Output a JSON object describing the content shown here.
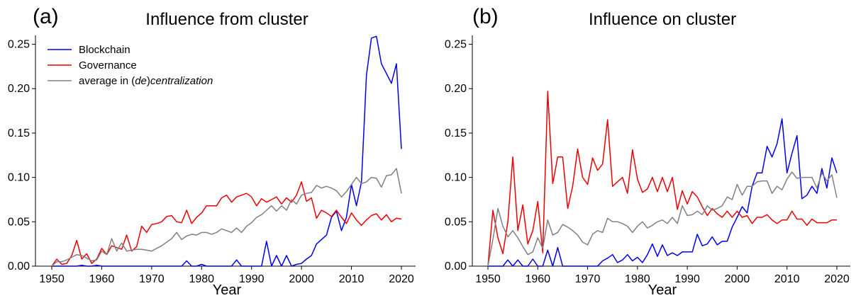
{
  "chart_data": [
    {
      "type": "line",
      "panel_label": "(a)",
      "title": "Influence from cluster",
      "xlabel": "Year",
      "ylabel": "",
      "xlim": [
        1950,
        2020
      ],
      "ylim": [
        0,
        0.26
      ],
      "xticks": [
        1950,
        1960,
        1970,
        1980,
        1990,
        2000,
        2010,
        2020
      ],
      "yticks": [
        "0.00",
        "0.05",
        "0.10",
        "0.15",
        "0.20",
        "0.25"
      ],
      "legend": "top-left",
      "grid": false,
      "x": [
        1950,
        1951,
        1952,
        1953,
        1954,
        1955,
        1956,
        1957,
        1958,
        1959,
        1960,
        1961,
        1962,
        1963,
        1964,
        1965,
        1966,
        1967,
        1968,
        1969,
        1970,
        1971,
        1972,
        1973,
        1974,
        1975,
        1976,
        1977,
        1978,
        1979,
        1980,
        1981,
        1982,
        1983,
        1984,
        1985,
        1986,
        1987,
        1988,
        1989,
        1990,
        1991,
        1992,
        1993,
        1994,
        1995,
        1996,
        1997,
        1998,
        1999,
        2000,
        2001,
        2002,
        2003,
        2004,
        2005,
        2006,
        2007,
        2008,
        2009,
        2010,
        2011,
        2012,
        2013,
        2014,
        2015,
        2016,
        2017,
        2018,
        2019,
        2020
      ],
      "series": [
        {
          "name": "Blockchain",
          "color": "#0000ee",
          "values": [
            0,
            0,
            0,
            0,
            0,
            0,
            0.001,
            0,
            0,
            0.001,
            0,
            0,
            0,
            0,
            0,
            0,
            0,
            0,
            0,
            0,
            0,
            0,
            0,
            0,
            0,
            0,
            0,
            0.006,
            0,
            0,
            0.002,
            0,
            0,
            0,
            0,
            0,
            0,
            0.007,
            0,
            0,
            0,
            0,
            0,
            0.028,
            0,
            0.012,
            0,
            0.012,
            0,
            0.002,
            0.003,
            0.008,
            0.012,
            0.025,
            0.03,
            0.035,
            0.055,
            0.062,
            0.04,
            0.055,
            0.092,
            0.068,
            0.095,
            0.215,
            0.257,
            0.259,
            0.228,
            0.217,
            0.206,
            0.228,
            0.132
          ]
        },
        {
          "name": "Governance",
          "color": "#ee0000",
          "values": [
            0,
            0.008,
            0.002,
            0.003,
            0.012,
            0.029,
            0.008,
            0.014,
            0.003,
            0.008,
            0.02,
            0.013,
            0.023,
            0.021,
            0.019,
            0.035,
            0.017,
            0.022,
            0.045,
            0.038,
            0.047,
            0.048,
            0.05,
            0.056,
            0.057,
            0.05,
            0.049,
            0.063,
            0.048,
            0.055,
            0.06,
            0.068,
            0.068,
            0.068,
            0.077,
            0.08,
            0.072,
            0.078,
            0.08,
            0.082,
            0.078,
            0.068,
            0.076,
            0.072,
            0.075,
            0.078,
            0.07,
            0.077,
            0.072,
            0.08,
            0.095,
            0.073,
            0.077,
            0.054,
            0.063,
            0.06,
            0.056,
            0.063,
            0.055,
            0.048,
            0.06,
            0.052,
            0.046,
            0.052,
            0.057,
            0.059,
            0.052,
            0.058,
            0.05,
            0.054,
            0.053
          ]
        },
        {
          "name": "average in (de)centralization",
          "color": "#808080",
          "values": [
            0,
            0.005,
            0.005,
            0.007,
            0.01,
            0.013,
            0.012,
            0.009,
            0.006,
            0.007,
            0.017,
            0.013,
            0.031,
            0.017,
            0.026,
            0.017,
            0.018,
            0.019,
            0.019,
            0.018,
            0.017,
            0.02,
            0.023,
            0.027,
            0.031,
            0.038,
            0.03,
            0.034,
            0.036,
            0.035,
            0.038,
            0.038,
            0.036,
            0.038,
            0.042,
            0.04,
            0.038,
            0.043,
            0.038,
            0.045,
            0.049,
            0.055,
            0.058,
            0.063,
            0.068,
            0.062,
            0.068,
            0.063,
            0.075,
            0.07,
            0.08,
            0.082,
            0.083,
            0.091,
            0.088,
            0.09,
            0.088,
            0.085,
            0.078,
            0.084,
            0.092,
            0.1,
            0.093,
            0.095,
            0.1,
            0.099,
            0.089,
            0.102,
            0.103,
            0.11,
            0.082
          ]
        }
      ]
    },
    {
      "type": "line",
      "panel_label": "(b)",
      "title": "Influence on cluster",
      "xlabel": "Year",
      "ylabel": "",
      "xlim": [
        1950,
        2020
      ],
      "ylim": [
        0,
        0.26
      ],
      "xticks": [
        1950,
        1960,
        1970,
        1980,
        1990,
        2000,
        2010,
        2020
      ],
      "yticks": [
        "0.00",
        "0.05",
        "0.10",
        "0.15",
        "0.20",
        "0.25"
      ],
      "grid": false,
      "x": [
        1950,
        1951,
        1952,
        1953,
        1954,
        1955,
        1956,
        1957,
        1958,
        1959,
        1960,
        1961,
        1962,
        1963,
        1964,
        1965,
        1966,
        1967,
        1968,
        1969,
        1970,
        1971,
        1972,
        1973,
        1974,
        1975,
        1976,
        1977,
        1978,
        1979,
        1980,
        1981,
        1982,
        1983,
        1984,
        1985,
        1986,
        1987,
        1988,
        1989,
        1990,
        1991,
        1992,
        1993,
        1994,
        1995,
        1996,
        1997,
        1998,
        1999,
        2000,
        2001,
        2002,
        2003,
        2004,
        2005,
        2006,
        2007,
        2008,
        2009,
        2010,
        2011,
        2012,
        2013,
        2014,
        2015,
        2016,
        2017,
        2018,
        2019,
        2020
      ],
      "series": [
        {
          "name": "Blockchain",
          "color": "#0000ee",
          "values": [
            0,
            0,
            0,
            0,
            0.007,
            0,
            0.007,
            0,
            0,
            0.008,
            0,
            0,
            0.018,
            0,
            0.021,
            0,
            0,
            0,
            0,
            0,
            0,
            0,
            0,
            0.006,
            0.009,
            0.013,
            0.004,
            0.007,
            0.013,
            0.006,
            0.01,
            0.004,
            0.013,
            0.025,
            0.011,
            0.024,
            0.012,
            0.015,
            0.012,
            0.016,
            0.016,
            0.016,
            0.036,
            0.023,
            0.025,
            0.033,
            0.024,
            0.028,
            0.028,
            0.044,
            0.055,
            0.067,
            0.06,
            0.09,
            0.105,
            0.105,
            0.135,
            0.123,
            0.138,
            0.166,
            0.105,
            0.127,
            0.147,
            0.076,
            0.08,
            0.09,
            0.082,
            0.11,
            0.088,
            0.122,
            0.105
          ]
        },
        {
          "name": "Governance",
          "color": "#ee0000",
          "values": [
            0,
            0.063,
            0.032,
            0.014,
            0.05,
            0.123,
            0.04,
            0.069,
            0.025,
            0.04,
            0.073,
            0.015,
            0.197,
            0.093,
            0.123,
            0.123,
            0.065,
            0.09,
            0.132,
            0.1,
            0.092,
            0.122,
            0.108,
            0.115,
            0.165,
            0.09,
            0.095,
            0.1,
            0.082,
            0.131,
            0.098,
            0.083,
            0.087,
            0.1,
            0.084,
            0.1,
            0.084,
            0.1,
            0.064,
            0.085,
            0.07,
            0.084,
            0.078,
            0.067,
            0.057,
            0.065,
            0.059,
            0.055,
            0.062,
            0.055,
            0.062,
            0.055,
            0.057,
            0.048,
            0.055,
            0.055,
            0.058,
            0.052,
            0.048,
            0.052,
            0.052,
            0.062,
            0.053,
            0.053,
            0.046,
            0.053,
            0.049,
            0.049,
            0.049,
            0.052,
            0.052
          ]
        },
        {
          "name": "average in (de)centralization",
          "color": "#808080",
          "values": [
            0,
            0.03,
            0.065,
            0.045,
            0.033,
            0.04,
            0.032,
            0.022,
            0.013,
            0.016,
            0.032,
            0.02,
            0.052,
            0.035,
            0.038,
            0.047,
            0.044,
            0.04,
            0.035,
            0.027,
            0.024,
            0.036,
            0.04,
            0.038,
            0.054,
            0.05,
            0.05,
            0.048,
            0.045,
            0.038,
            0.045,
            0.05,
            0.043,
            0.046,
            0.05,
            0.052,
            0.048,
            0.055,
            0.048,
            0.068,
            0.057,
            0.058,
            0.062,
            0.058,
            0.068,
            0.063,
            0.065,
            0.068,
            0.078,
            0.075,
            0.092,
            0.08,
            0.09,
            0.09,
            0.095,
            0.096,
            0.096,
            0.082,
            0.09,
            0.086,
            0.098,
            0.106,
            0.099,
            0.1,
            0.1,
            0.1,
            0.088,
            0.105,
            0.096,
            0.103,
            0.077
          ]
        }
      ]
    }
  ]
}
